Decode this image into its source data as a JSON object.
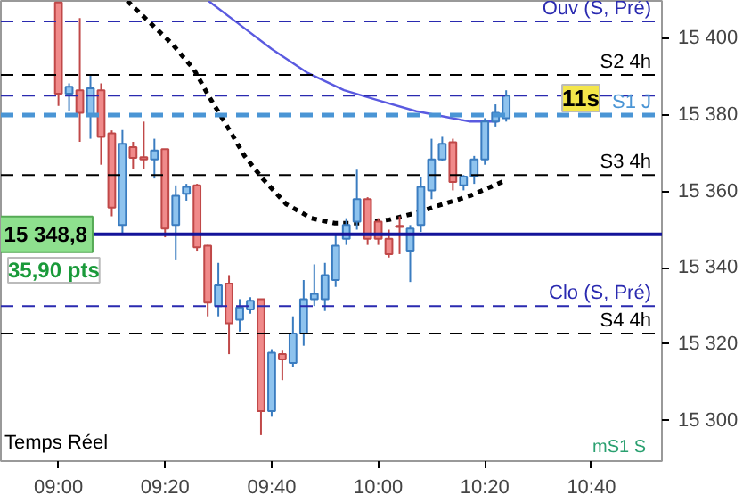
{
  "chart_data": {
    "type": "candlestick",
    "x": [
      9,
      9.0333,
      9.0667,
      9.1,
      9.1333,
      9.1667,
      9.2,
      9.2333,
      9.2667,
      9.3,
      9.3333,
      9.3667,
      9.4,
      9.4333,
      9.4667,
      9.5,
      9.5333,
      9.5667,
      9.6,
      9.6333,
      9.6667,
      9.7,
      9.7333,
      9.7667,
      9.8,
      9.8333,
      9.8667,
      9.9,
      9.9333,
      9.9667,
      10,
      10.0333,
      10.0667,
      10.1,
      10.1333,
      10.1667,
      10.2,
      10.2333,
      10.2667,
      10.3,
      10.3333,
      10.3667,
      10.4
    ],
    "ohlc": [
      [
        15409.5,
        15409.5,
        15382.4,
        15385.6
      ],
      [
        15385.6,
        15388.3,
        15381.0,
        15387.4
      ],
      [
        15386.5,
        15405.4,
        15373.0,
        15380.6
      ],
      [
        15380.1,
        15390.5,
        15373.8,
        15387.0
      ],
      [
        15386.5,
        15388.3,
        15367.0,
        15374.3
      ],
      [
        15375.2,
        15376.0,
        15353.5,
        15355.8
      ],
      [
        15351.2,
        15376.1,
        15349.0,
        15372.5
      ],
      [
        15371.6,
        15373.0,
        15366.0,
        15368.8
      ],
      [
        15369.0,
        15378.3,
        15366.0,
        15368.4
      ],
      [
        15368.4,
        15373.8,
        15363.4,
        15370.7
      ],
      [
        15371.1,
        15371.1,
        15348.0,
        15350.3
      ],
      [
        15351.2,
        15361.6,
        15342.2,
        15358.9
      ],
      [
        15359.4,
        15362.0,
        15357.6,
        15361.2
      ],
      [
        15361.6,
        15362.0,
        15344.5,
        15345.4
      ],
      [
        15345.8,
        15346.0,
        15327.3,
        15330.9
      ],
      [
        15330.0,
        15341.3,
        15327.3,
        15335.4
      ],
      [
        15335.9,
        15338.1,
        15317.4,
        15325.5
      ],
      [
        15326.4,
        15331.8,
        15323.3,
        15329.6
      ],
      [
        15329.1,
        15332.3,
        15328.0,
        15331.4
      ],
      [
        15331.8,
        15331.8,
        15296.2,
        15302.5
      ],
      [
        15302.5,
        15318.7,
        15301.0,
        15317.8
      ],
      [
        15317.4,
        15318.3,
        15310.6,
        15316.0
      ],
      [
        15315.1,
        15327.3,
        15314.0,
        15322.8
      ],
      [
        15322.8,
        15336.8,
        15319.6,
        15331.8
      ],
      [
        15331.8,
        15340.9,
        15330.0,
        15333.2
      ],
      [
        15331.8,
        15341.3,
        15328.7,
        15338.1
      ],
      [
        15336.8,
        15349.0,
        15335.0,
        15345.8
      ],
      [
        15347.6,
        15353.0,
        15346.0,
        15351.2
      ],
      [
        15352.1,
        15365.7,
        15350.0,
        15358.0
      ],
      [
        15358.0,
        15358.5,
        15346.0,
        15347.6
      ],
      [
        15352.1,
        15353.0,
        15346.0,
        15347.6
      ],
      [
        15347.6,
        15350.0,
        15342.7,
        15343.6
      ],
      [
        15351.0,
        15353.5,
        15343.6,
        15350.7
      ],
      [
        15344.5,
        15351.2,
        15336.3,
        15350.3
      ],
      [
        15351.2,
        15363.9,
        15349.4,
        15361.2
      ],
      [
        15360.3,
        15373.8,
        15358.0,
        15368.4
      ],
      [
        15368.4,
        15374.3,
        15368.0,
        15372.5
      ],
      [
        15372.9,
        15373.8,
        15360.3,
        15362.5
      ],
      [
        15361.6,
        15364.3,
        15360.3,
        15363.9
      ],
      [
        15363.9,
        15369.3,
        15362.0,
        15368.4
      ],
      [
        15368.4,
        15379.2,
        15367.0,
        15378.3
      ],
      [
        15378.3,
        15382.8,
        15377.0,
        15380.6
      ],
      [
        15379.2,
        15386.5,
        15378.3,
        15385.1
      ]
    ],
    "colors": [
      "#f08a8a",
      "#8ec3ee",
      "#f08a8a",
      "#8ec3ee",
      "#f08a8a",
      "#f08a8a",
      "#8ec3ee",
      "#f08a8a",
      "#f08a8a",
      "#8ec3ee",
      "#f08a8a",
      "#8ec3ee",
      "#8ec3ee",
      "#f08a8a",
      "#f08a8a",
      "#8ec3ee",
      "#f08a8a",
      "#8ec3ee",
      "#8ec3ee",
      "#f08a8a",
      "#8ec3ee",
      "#f08a8a",
      "#8ec3ee",
      "#8ec3ee",
      "#8ec3ee",
      "#8ec3ee",
      "#8ec3ee",
      "#8ec3ee",
      "#8ec3ee",
      "#f08a8a",
      "#f08a8a",
      "#f08a8a",
      "#f08a8a",
      "#8ec3ee",
      "#8ec3ee",
      "#8ec3ee",
      "#8ec3ee",
      "#f08a8a",
      "#8ec3ee",
      "#8ec3ee",
      "#8ec3ee",
      "#8ec3ee",
      "#8ec3ee"
    ],
    "series": [
      {
        "type": "line",
        "color": "#5a5ae0",
        "line_style": "solid",
        "x": [
          9.469,
          9.554,
          9.667,
          9.78,
          9.893,
          10.006,
          10.119,
          10.232,
          10.288,
          10.373
        ],
        "values": [
          15409.9,
          15404.5,
          15397.3,
          15391.0,
          15386.5,
          15383.7,
          15381.0,
          15379.2,
          15378.3,
          15378.3
        ]
      },
      {
        "type": "line",
        "color": "#000000",
        "line_style": "dotted",
        "x": [
          9.215,
          9.271,
          9.356,
          9.424,
          9.469,
          9.525,
          9.582,
          9.638,
          9.712,
          9.791,
          9.864,
          9.949,
          10.034,
          10.119,
          10.203,
          10.288,
          10.401
        ],
        "values": [
          15409.9,
          15405.4,
          15398.6,
          15391.9,
          15385.1,
          15377.4,
          15369.3,
          15363.4,
          15356.7,
          15353.0,
          15351.7,
          15351.7,
          15352.6,
          15354.4,
          15356.7,
          15358.9,
          15363.0
        ]
      }
    ],
    "ref_lines": [
      {
        "axis": "y",
        "value": 15404.5,
        "label": "Ouv (S, Pré)",
        "color": "#2a2ab0",
        "line_style": "dashed"
      },
      {
        "axis": "y",
        "value": 15390.5,
        "label": "S2 4h",
        "color": "#000000",
        "line_style": "dashed"
      },
      {
        "axis": "y",
        "value": 15385.1,
        "color": "#2a2ab0",
        "line_style": "dashed"
      },
      {
        "axis": "y",
        "value": 15380.0,
        "label": "S1 J",
        "color": "#4a95d5",
        "line_style": "dashed"
      },
      {
        "axis": "y",
        "value": 15364.3,
        "label": "S3 4h",
        "color": "#000000",
        "line_style": "dashed"
      },
      {
        "axis": "y",
        "value": 15348.8,
        "color": "#14149a",
        "line_style": "solid"
      },
      {
        "axis": "y",
        "value": 15330.0,
        "label": "Clo (S, Pré)",
        "color": "#2a2ab0",
        "line_style": "dashed"
      },
      {
        "axis": "y",
        "value": 15322.8,
        "label": "S4 4h",
        "color": "#000000",
        "line_style": "dashed"
      }
    ],
    "annotations": [
      {
        "text": "15 348,8",
        "x": 8.96,
        "y": 15348.8
      },
      "35,90 pts",
      "11s",
      "mS1 S",
      "Temps Réel"
    ],
    "xlim": [
      8.82,
      10.887
    ],
    "ylim": [
      15289.4,
      15409.9
    ],
    "xticks": [
      {
        "value": 9,
        "label": "09:00"
      },
      {
        "value": 9.3333,
        "label": "09:20"
      },
      {
        "value": 9.6667,
        "label": "09:40"
      },
      {
        "value": 10,
        "label": "10:00"
      },
      {
        "value": 10.3333,
        "label": "10:20"
      },
      {
        "value": 10.6667,
        "label": "10:40"
      }
    ],
    "yticks": [
      {
        "value": 15300,
        "label": "15 300"
      },
      {
        "value": 15320,
        "label": "15 320"
      },
      {
        "value": 15340,
        "label": "15 340"
      },
      {
        "value": 15360,
        "label": "15 360"
      },
      {
        "value": 15380,
        "label": "15 380"
      },
      {
        "value": 15400,
        "label": "15 400"
      }
    ]
  }
}
